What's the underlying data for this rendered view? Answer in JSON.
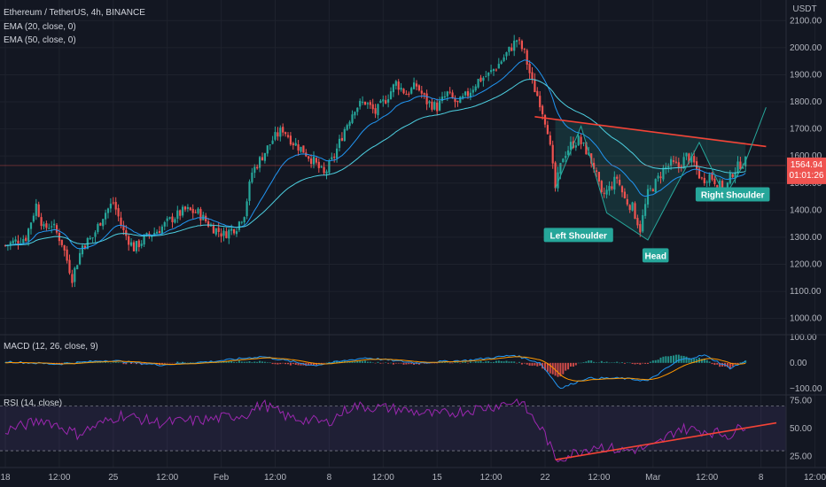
{
  "header": {
    "symbol_line": "Ethereum / TetherUS, 4h, BINANCE",
    "ema20": "EMA (20, close, 0)",
    "ema50": "EMA (50, close, 0)",
    "macd_label": "MACD (12, 26, close, 9)",
    "rsi_label": "RSI (14, close)",
    "currency": "USDT",
    "price_tag": "1564.94",
    "countdown": "01:01:26"
  },
  "colors": {
    "background": "#131722",
    "bull": "#26a69a",
    "bear": "#ef5350",
    "ema20": "#2196f3",
    "ema50": "#4dd0e1",
    "rsi": "#9c27b0",
    "rsi_band": "#7e57c2",
    "trend": "#f44336",
    "pattern": "#26a69a"
  },
  "chart_data": [
    {
      "type": "candlestick",
      "y_ticks": [
        1000,
        1100,
        1200,
        1300,
        1400,
        1500,
        1600,
        1700,
        1800,
        1900,
        2000,
        2100
      ],
      "y_tick_labels": [
        "1000.00",
        "1100.00",
        "1200.00",
        "1300.00",
        "1400.00",
        "1500.00",
        "1600.00",
        "1700.00",
        "1800.00",
        "1900.00",
        "2000.00",
        "2100.00"
      ],
      "ylim": [
        940,
        2150
      ],
      "x_labels": [
        "18",
        "12:00",
        "25",
        "12:00",
        "Feb",
        "12:00",
        "8",
        "12:00",
        "15",
        "12:00",
        "22",
        "12:00",
        "Mar",
        "12:00",
        "8",
        "12:00"
      ],
      "x_label_index": [
        0,
        21,
        42,
        63,
        84,
        105,
        126,
        147,
        168,
        189,
        210,
        231,
        252,
        273,
        294,
        315
      ],
      "last_price": 1564.94,
      "keypoints": [
        [
          0,
          1270
        ],
        [
          8,
          1300
        ],
        [
          12,
          1420
        ],
        [
          15,
          1330
        ],
        [
          18,
          1350
        ],
        [
          22,
          1280
        ],
        [
          26,
          1150
        ],
        [
          30,
          1270
        ],
        [
          34,
          1300
        ],
        [
          38,
          1380
        ],
        [
          42,
          1430
        ],
        [
          46,
          1320
        ],
        [
          50,
          1260
        ],
        [
          55,
          1300
        ],
        [
          60,
          1330
        ],
        [
          65,
          1370
        ],
        [
          70,
          1400
        ],
        [
          75,
          1390
        ],
        [
          80,
          1340
        ],
        [
          85,
          1310
        ],
        [
          90,
          1340
        ],
        [
          93,
          1390
        ],
        [
          96,
          1540
        ],
        [
          100,
          1600
        ],
        [
          104,
          1660
        ],
        [
          108,
          1700
        ],
        [
          112,
          1650
        ],
        [
          116,
          1620
        ],
        [
          120,
          1580
        ],
        [
          124,
          1530
        ],
        [
          128,
          1600
        ],
        [
          132,
          1700
        ],
        [
          136,
          1780
        ],
        [
          140,
          1800
        ],
        [
          144,
          1760
        ],
        [
          148,
          1810
        ],
        [
          152,
          1870
        ],
        [
          156,
          1830
        ],
        [
          160,
          1860
        ],
        [
          164,
          1800
        ],
        [
          168,
          1780
        ],
        [
          172,
          1830
        ],
        [
          176,
          1790
        ],
        [
          180,
          1830
        ],
        [
          184,
          1880
        ],
        [
          188,
          1900
        ],
        [
          192,
          1940
        ],
        [
          196,
          1990
        ],
        [
          199,
          2030
        ],
        [
          202,
          1980
        ],
        [
          205,
          1870
        ],
        [
          208,
          1800
        ],
        [
          211,
          1700
        ],
        [
          214,
          1480
        ],
        [
          217,
          1600
        ],
        [
          220,
          1640
        ],
        [
          223,
          1660
        ],
        [
          226,
          1620
        ],
        [
          229,
          1560
        ],
        [
          232,
          1450
        ],
        [
          235,
          1480
        ],
        [
          238,
          1520
        ],
        [
          241,
          1440
        ],
        [
          244,
          1410
        ],
        [
          247,
          1330
        ],
        [
          250,
          1460
        ],
        [
          253,
          1500
        ],
        [
          256,
          1550
        ],
        [
          259,
          1570
        ],
        [
          262,
          1560
        ],
        [
          265,
          1600
        ],
        [
          268,
          1570
        ],
        [
          271,
          1510
        ],
        [
          274,
          1530
        ],
        [
          277,
          1500
        ],
        [
          280,
          1470
        ],
        [
          283,
          1540
        ],
        [
          286,
          1570
        ],
        [
          288,
          1580
        ]
      ],
      "projection": [
        [
          288,
          1580
        ],
        [
          296,
          1780
        ]
      ],
      "neckline": [
        [
          206,
          1745
        ],
        [
          296,
          1635
        ]
      ],
      "pattern_polyline": [
        [
          214,
          1480
        ],
        [
          224,
          1710
        ],
        [
          234,
          1390
        ],
        [
          250,
          1290
        ],
        [
          270,
          1650
        ],
        [
          280,
          1450
        ],
        [
          288,
          1580
        ]
      ],
      "annotations": [
        {
          "text": "Left Shoulder",
          "x": 223,
          "y": 1305
        },
        {
          "text": "Head",
          "x": 253,
          "y": 1230
        },
        {
          "text": "Right Shoulder",
          "x": 283,
          "y": 1455
        }
      ]
    },
    {
      "type": "histogram",
      "name": "MACD",
      "y_ticks": [
        100,
        0,
        -100
      ],
      "y_tick_labels": [
        "100.00",
        "0.00",
        "−100.00"
      ],
      "ylim": [
        -125,
        110
      ],
      "keypoints": [
        [
          0,
          5
        ],
        [
          20,
          -5
        ],
        [
          40,
          10
        ],
        [
          60,
          -8
        ],
        [
          80,
          5
        ],
        [
          100,
          25
        ],
        [
          120,
          -10
        ],
        [
          140,
          20
        ],
        [
          160,
          0
        ],
        [
          180,
          10
        ],
        [
          198,
          30
        ],
        [
          208,
          0
        ],
        [
          216,
          -100
        ],
        [
          226,
          -60
        ],
        [
          240,
          -60
        ],
        [
          250,
          -70
        ],
        [
          262,
          10
        ],
        [
          272,
          30
        ],
        [
          282,
          -20
        ],
        [
          288,
          5
        ]
      ]
    },
    {
      "type": "line",
      "name": "RSI",
      "y_ticks": [
        75,
        50,
        25
      ],
      "y_tick_labels": [
        "75.00",
        "50.00",
        "25.00"
      ],
      "band": [
        30,
        70
      ],
      "ylim": [
        15,
        80
      ],
      "keypoints": [
        [
          0,
          48
        ],
        [
          15,
          58
        ],
        [
          28,
          45
        ],
        [
          45,
          62
        ],
        [
          60,
          55
        ],
        [
          80,
          58
        ],
        [
          94,
          63
        ],
        [
          100,
          72
        ],
        [
          110,
          60
        ],
        [
          125,
          55
        ],
        [
          135,
          70
        ],
        [
          150,
          68
        ],
        [
          168,
          62
        ],
        [
          190,
          70
        ],
        [
          200,
          75
        ],
        [
          210,
          45
        ],
        [
          214,
          22
        ],
        [
          230,
          35
        ],
        [
          240,
          30
        ],
        [
          252,
          33
        ],
        [
          262,
          50
        ],
        [
          272,
          48
        ],
        [
          282,
          44
        ],
        [
          288,
          54
        ]
      ],
      "trendline": [
        [
          214,
          22
        ],
        [
          300,
          55
        ]
      ]
    }
  ]
}
